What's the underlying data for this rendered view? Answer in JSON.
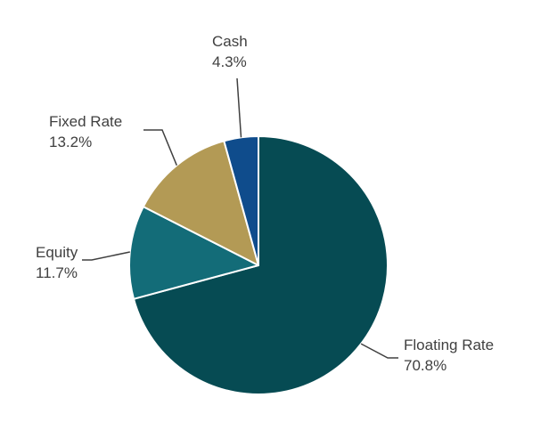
{
  "chart_data": {
    "type": "pie",
    "title": "",
    "slices": [
      {
        "label": "Floating Rate",
        "value": 70.8,
        "value_label": "70.8%",
        "color": "#064b53"
      },
      {
        "label": "Equity",
        "value": 11.7,
        "value_label": "11.7%",
        "color": "#136c78"
      },
      {
        "label": "Fixed Rate",
        "value": 13.2,
        "value_label": "13.2%",
        "color": "#b39a55"
      },
      {
        "label": "Cash",
        "value": 4.3,
        "value_label": "4.3%",
        "color": "#0f4c8c"
      }
    ],
    "start": "12 o'clock",
    "direction": "clockwise",
    "legend": "none (leader-line labels)"
  }
}
